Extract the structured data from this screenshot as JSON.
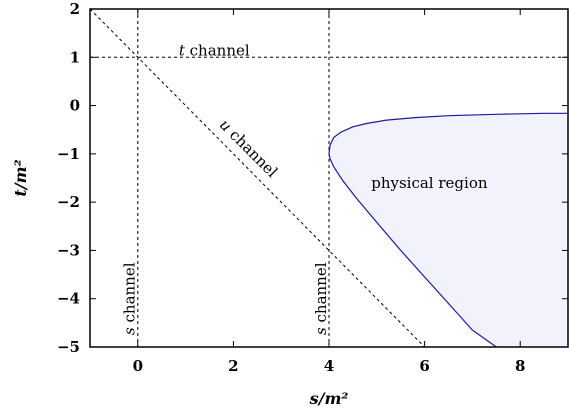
{
  "chart_data": {
    "type": "line",
    "title": "",
    "xlabel": "s/m²",
    "ylabel": "t/m²",
    "xlim": [
      -1,
      9
    ],
    "ylim": [
      -5,
      2
    ],
    "xticks": [
      0,
      2,
      4,
      6,
      8
    ],
    "yticks": [
      2,
      1,
      0,
      -1,
      -2,
      -3,
      -4,
      -5
    ],
    "xtick_labels": [
      "0",
      "2",
      "4",
      "6",
      "8"
    ],
    "ytick_labels": [
      "2",
      "1",
      "0",
      "−1",
      "−2",
      "−3",
      "−4",
      "−5"
    ],
    "grid": false,
    "series": [
      {
        "kind": "vline",
        "x": 0,
        "style": "dashed"
      },
      {
        "kind": "vline",
        "x": 4,
        "style": "dashed"
      },
      {
        "kind": "hline",
        "y": 1,
        "style": "dashed"
      },
      {
        "kind": "line",
        "x": [
          -1,
          6
        ],
        "y": [
          2,
          -5
        ],
        "style": "dashed"
      },
      {
        "kind": "boundary",
        "color": "#1a1aa0",
        "fill": "#f2f2fc",
        "x": [
          4.0,
          4.02,
          4.1,
          4.25,
          4.5,
          4.8,
          5.2,
          5.8,
          6.5,
          7.5,
          8.5,
          9.0,
          9.0,
          8.5,
          8.0,
          7.5,
          7.0,
          6.5,
          6.0,
          5.5,
          5.0,
          4.6,
          4.3,
          4.1,
          4.02,
          4.0
        ],
        "y": [
          -1.0,
          -0.82,
          -0.66,
          -0.55,
          -0.44,
          -0.37,
          -0.3,
          -0.25,
          -0.21,
          -0.18,
          -0.16,
          -0.16,
          -5.0,
          -5.0,
          -5.0,
          -5.0,
          -4.65,
          -4.1,
          -3.55,
          -3.0,
          -2.42,
          -1.95,
          -1.57,
          -1.27,
          -1.1,
          -1.0
        ]
      }
    ],
    "annotations": [
      {
        "text_italic": "t",
        "text": " channel",
        "x": 1.6,
        "y": 1.12,
        "rotate": 0
      },
      {
        "text_italic": "u",
        "text": " channel",
        "x": 2.3,
        "y": -0.9,
        "rotate": 45
      },
      {
        "text_italic": "s",
        "text": " channel",
        "x": -0.15,
        "y": -4.0,
        "rotate": -90
      },
      {
        "text_italic": "s",
        "text": " channel",
        "x": 3.85,
        "y": -4.0,
        "rotate": -90
      },
      {
        "text_italic": "",
        "text": "physical region",
        "x": 6.1,
        "y": -1.62,
        "rotate": 0
      }
    ]
  }
}
